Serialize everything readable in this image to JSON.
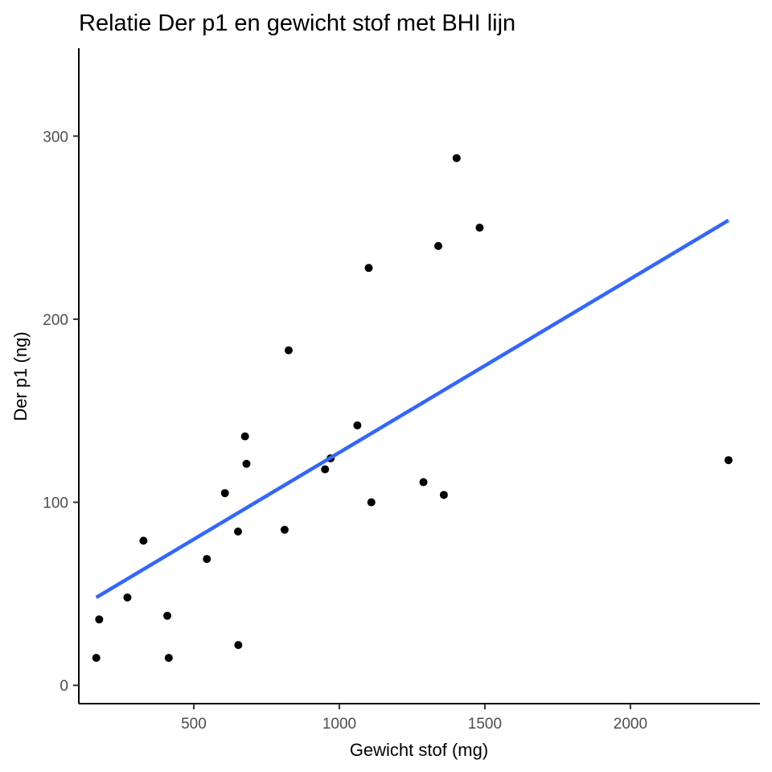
{
  "chart_data": {
    "type": "scatter",
    "title": "Relatie Der p1 en gewicht stof met BHI lijn",
    "xlabel": "Gewicht stof (mg)",
    "ylabel": "Der p1 (ng)",
    "xlim": [
      105,
      2445
    ],
    "ylim": [
      -10,
      348
    ],
    "x_ticks": [
      500,
      1000,
      1500,
      2000
    ],
    "x_tick_labels": [
      "500",
      "1000",
      "1500",
      "2000"
    ],
    "y_ticks": [
      0,
      100,
      200,
      300
    ],
    "y_tick_labels": [
      "0",
      "100",
      "200",
      "300"
    ],
    "grid": false,
    "legend": "none",
    "point_color": "#000000",
    "points": [
      {
        "x": 165,
        "y": 15
      },
      {
        "x": 175,
        "y": 36
      },
      {
        "x": 272,
        "y": 48
      },
      {
        "x": 327,
        "y": 79
      },
      {
        "x": 409,
        "y": 38
      },
      {
        "x": 414,
        "y": 15
      },
      {
        "x": 545,
        "y": 69
      },
      {
        "x": 607,
        "y": 105
      },
      {
        "x": 652,
        "y": 84
      },
      {
        "x": 653,
        "y": 22
      },
      {
        "x": 676,
        "y": 136
      },
      {
        "x": 681,
        "y": 121
      },
      {
        "x": 812,
        "y": 85
      },
      {
        "x": 826,
        "y": 183
      },
      {
        "x": 951,
        "y": 118
      },
      {
        "x": 970,
        "y": 124
      },
      {
        "x": 1062,
        "y": 142
      },
      {
        "x": 1101,
        "y": 228
      },
      {
        "x": 1110,
        "y": 100
      },
      {
        "x": 1289,
        "y": 111
      },
      {
        "x": 1340,
        "y": 240
      },
      {
        "x": 1359,
        "y": 104
      },
      {
        "x": 1403,
        "y": 288
      },
      {
        "x": 1482,
        "y": 250
      },
      {
        "x": 2337,
        "y": 123
      }
    ],
    "trend_line": {
      "method": "linear",
      "color": "#3366ff",
      "x": [
        165,
        2337
      ],
      "y": [
        48,
        254
      ]
    }
  }
}
